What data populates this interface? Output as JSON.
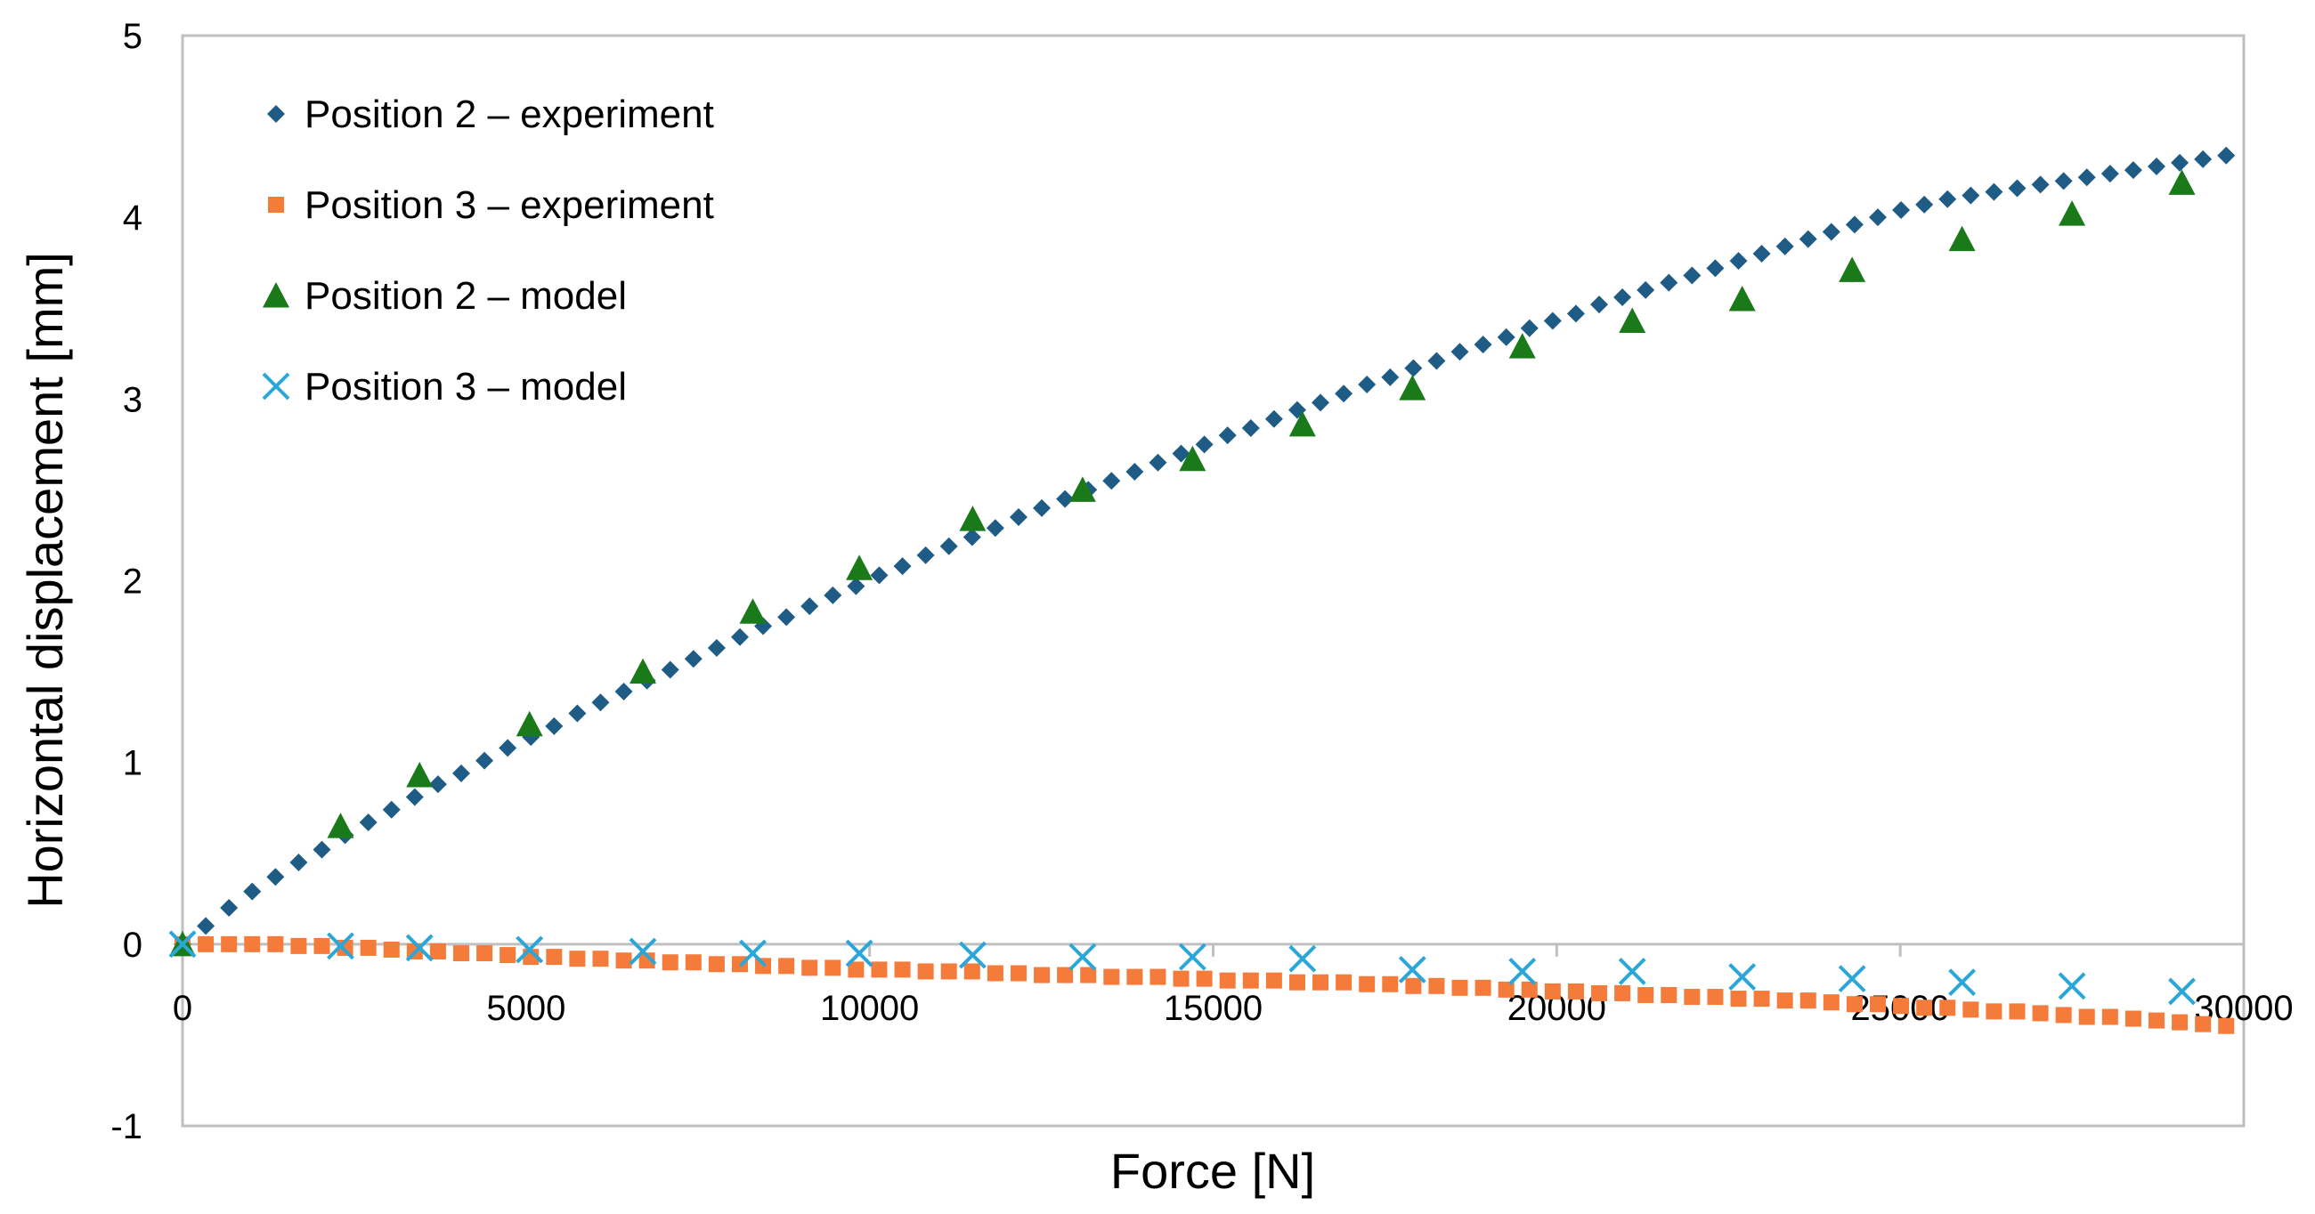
{
  "chart_data": {
    "type": "scatter",
    "title": "",
    "xlabel": "Force [N]",
    "ylabel": "Horizontal displacement [mm]",
    "xlim": [
      0,
      30000
    ],
    "ylim": [
      -1,
      5
    ],
    "xticks": [
      0,
      5000,
      10000,
      15000,
      20000,
      25000,
      30000
    ],
    "yticks": [
      -1,
      0,
      1,
      2,
      3,
      4,
      5
    ],
    "legend_position": "top-left",
    "grid": false,
    "series": [
      {
        "name": "Position 2 – experiment",
        "marker": "diamond",
        "color": "#1F5C85",
        "x": [
          0,
          338,
          676,
          1014,
          1352,
          1690,
          2028,
          2366,
          2704,
          3042,
          3380,
          3718,
          4056,
          4394,
          4732,
          5070,
          5408,
          5746,
          6084,
          6422,
          6760,
          7098,
          7436,
          7774,
          8112,
          8450,
          8788,
          9126,
          9464,
          9802,
          10140,
          10478,
          10816,
          11154,
          11492,
          11830,
          12168,
          12506,
          12844,
          13182,
          13520,
          13858,
          14196,
          14534,
          14872,
          15210,
          15548,
          15886,
          16224,
          16562,
          16900,
          17238,
          17576,
          17914,
          18252,
          18590,
          18928,
          19266,
          19604,
          19942,
          20280,
          20618,
          20956,
          21294,
          21632,
          21970,
          22308,
          22646,
          22984,
          23322,
          23660,
          23998,
          24336,
          24674,
          25012,
          25350,
          25688,
          26026,
          26364,
          26702,
          27040,
          27378,
          27716,
          28054,
          28392,
          28730,
          29068,
          29406,
          29744
        ],
        "y": [
          0.0,
          0.1,
          0.2,
          0.29,
          0.37,
          0.45,
          0.52,
          0.6,
          0.67,
          0.74,
          0.81,
          0.88,
          0.94,
          1.01,
          1.08,
          1.14,
          1.2,
          1.27,
          1.33,
          1.39,
          1.45,
          1.51,
          1.57,
          1.63,
          1.69,
          1.75,
          1.8,
          1.86,
          1.92,
          1.97,
          2.03,
          2.08,
          2.14,
          2.19,
          2.24,
          2.29,
          2.35,
          2.4,
          2.45,
          2.5,
          2.55,
          2.6,
          2.65,
          2.7,
          2.75,
          2.8,
          2.84,
          2.89,
          2.94,
          2.98,
          3.03,
          3.08,
          3.12,
          3.17,
          3.21,
          3.26,
          3.3,
          3.34,
          3.39,
          3.43,
          3.47,
          3.52,
          3.56,
          3.6,
          3.64,
          3.68,
          3.72,
          3.76,
          3.8,
          3.84,
          3.88,
          3.92,
          3.96,
          4.0,
          4.04,
          4.07,
          4.1,
          4.12,
          4.14,
          4.16,
          4.18,
          4.2,
          4.22,
          4.24,
          4.26,
          4.28,
          4.3,
          4.32,
          4.34
        ]
      },
      {
        "name": "Position 3 – experiment",
        "marker": "square",
        "color": "#F47B3A",
        "x": [
          0,
          338,
          676,
          1014,
          1352,
          1690,
          2028,
          2366,
          2704,
          3042,
          3380,
          3718,
          4056,
          4394,
          4732,
          5070,
          5408,
          5746,
          6084,
          6422,
          6760,
          7098,
          7436,
          7774,
          8112,
          8450,
          8788,
          9126,
          9464,
          9802,
          10140,
          10478,
          10816,
          11154,
          11492,
          11830,
          12168,
          12506,
          12844,
          13182,
          13520,
          13858,
          14196,
          14534,
          14872,
          15210,
          15548,
          15886,
          16224,
          16562,
          16900,
          17238,
          17576,
          17914,
          18252,
          18590,
          18928,
          19266,
          19604,
          19942,
          20280,
          20618,
          20956,
          21294,
          21632,
          21970,
          22308,
          22646,
          22984,
          23322,
          23660,
          23998,
          24336,
          24674,
          25012,
          25350,
          25688,
          26026,
          26364,
          26702,
          27040,
          27378,
          27716,
          28054,
          28392,
          28730,
          29068,
          29406,
          29744
        ],
        "y": [
          0.0,
          0.0,
          0.0,
          0.0,
          0.0,
          -0.01,
          -0.01,
          -0.02,
          -0.02,
          -0.03,
          -0.04,
          -0.04,
          -0.05,
          -0.05,
          -0.06,
          -0.07,
          -0.07,
          -0.08,
          -0.08,
          -0.09,
          -0.09,
          -0.1,
          -0.1,
          -0.11,
          -0.11,
          -0.12,
          -0.12,
          -0.13,
          -0.13,
          -0.14,
          -0.14,
          -0.14,
          -0.15,
          -0.15,
          -0.15,
          -0.16,
          -0.16,
          -0.17,
          -0.17,
          -0.17,
          -0.18,
          -0.18,
          -0.18,
          -0.19,
          -0.19,
          -0.2,
          -0.2,
          -0.2,
          -0.21,
          -0.21,
          -0.21,
          -0.22,
          -0.22,
          -0.23,
          -0.23,
          -0.24,
          -0.24,
          -0.25,
          -0.25,
          -0.26,
          -0.26,
          -0.27,
          -0.27,
          -0.28,
          -0.28,
          -0.29,
          -0.29,
          -0.3,
          -0.3,
          -0.31,
          -0.31,
          -0.32,
          -0.33,
          -0.33,
          -0.34,
          -0.35,
          -0.35,
          -0.36,
          -0.37,
          -0.37,
          -0.38,
          -0.39,
          -0.4,
          -0.4,
          -0.41,
          -0.42,
          -0.43,
          -0.44,
          -0.45
        ]
      },
      {
        "name": "Position 2 – model",
        "marker": "triangle",
        "color": "#1A7A1A",
        "x": [
          0,
          2300,
          3450,
          5050,
          6700,
          8300,
          9850,
          11500,
          13100,
          14700,
          16300,
          17900,
          19500,
          21100,
          22700,
          24300,
          25900,
          27500,
          29100
        ],
        "y": [
          0.0,
          0.65,
          0.93,
          1.21,
          1.5,
          1.83,
          2.07,
          2.34,
          2.5,
          2.67,
          2.86,
          3.06,
          3.29,
          3.43,
          3.55,
          3.71,
          3.88,
          4.02,
          4.19
        ]
      },
      {
        "name": "Position 3 – model",
        "marker": "x",
        "color": "#2AA7D8",
        "x": [
          0,
          2300,
          3450,
          5050,
          6700,
          8300,
          9850,
          11500,
          13100,
          14700,
          16300,
          17900,
          19500,
          21100,
          22700,
          24300,
          25900,
          27500,
          29100
        ],
        "y": [
          0.0,
          -0.01,
          -0.02,
          -0.03,
          -0.04,
          -0.05,
          -0.05,
          -0.06,
          -0.07,
          -0.07,
          -0.08,
          -0.14,
          -0.15,
          -0.15,
          -0.18,
          -0.19,
          -0.21,
          -0.23,
          -0.26
        ]
      }
    ]
  }
}
